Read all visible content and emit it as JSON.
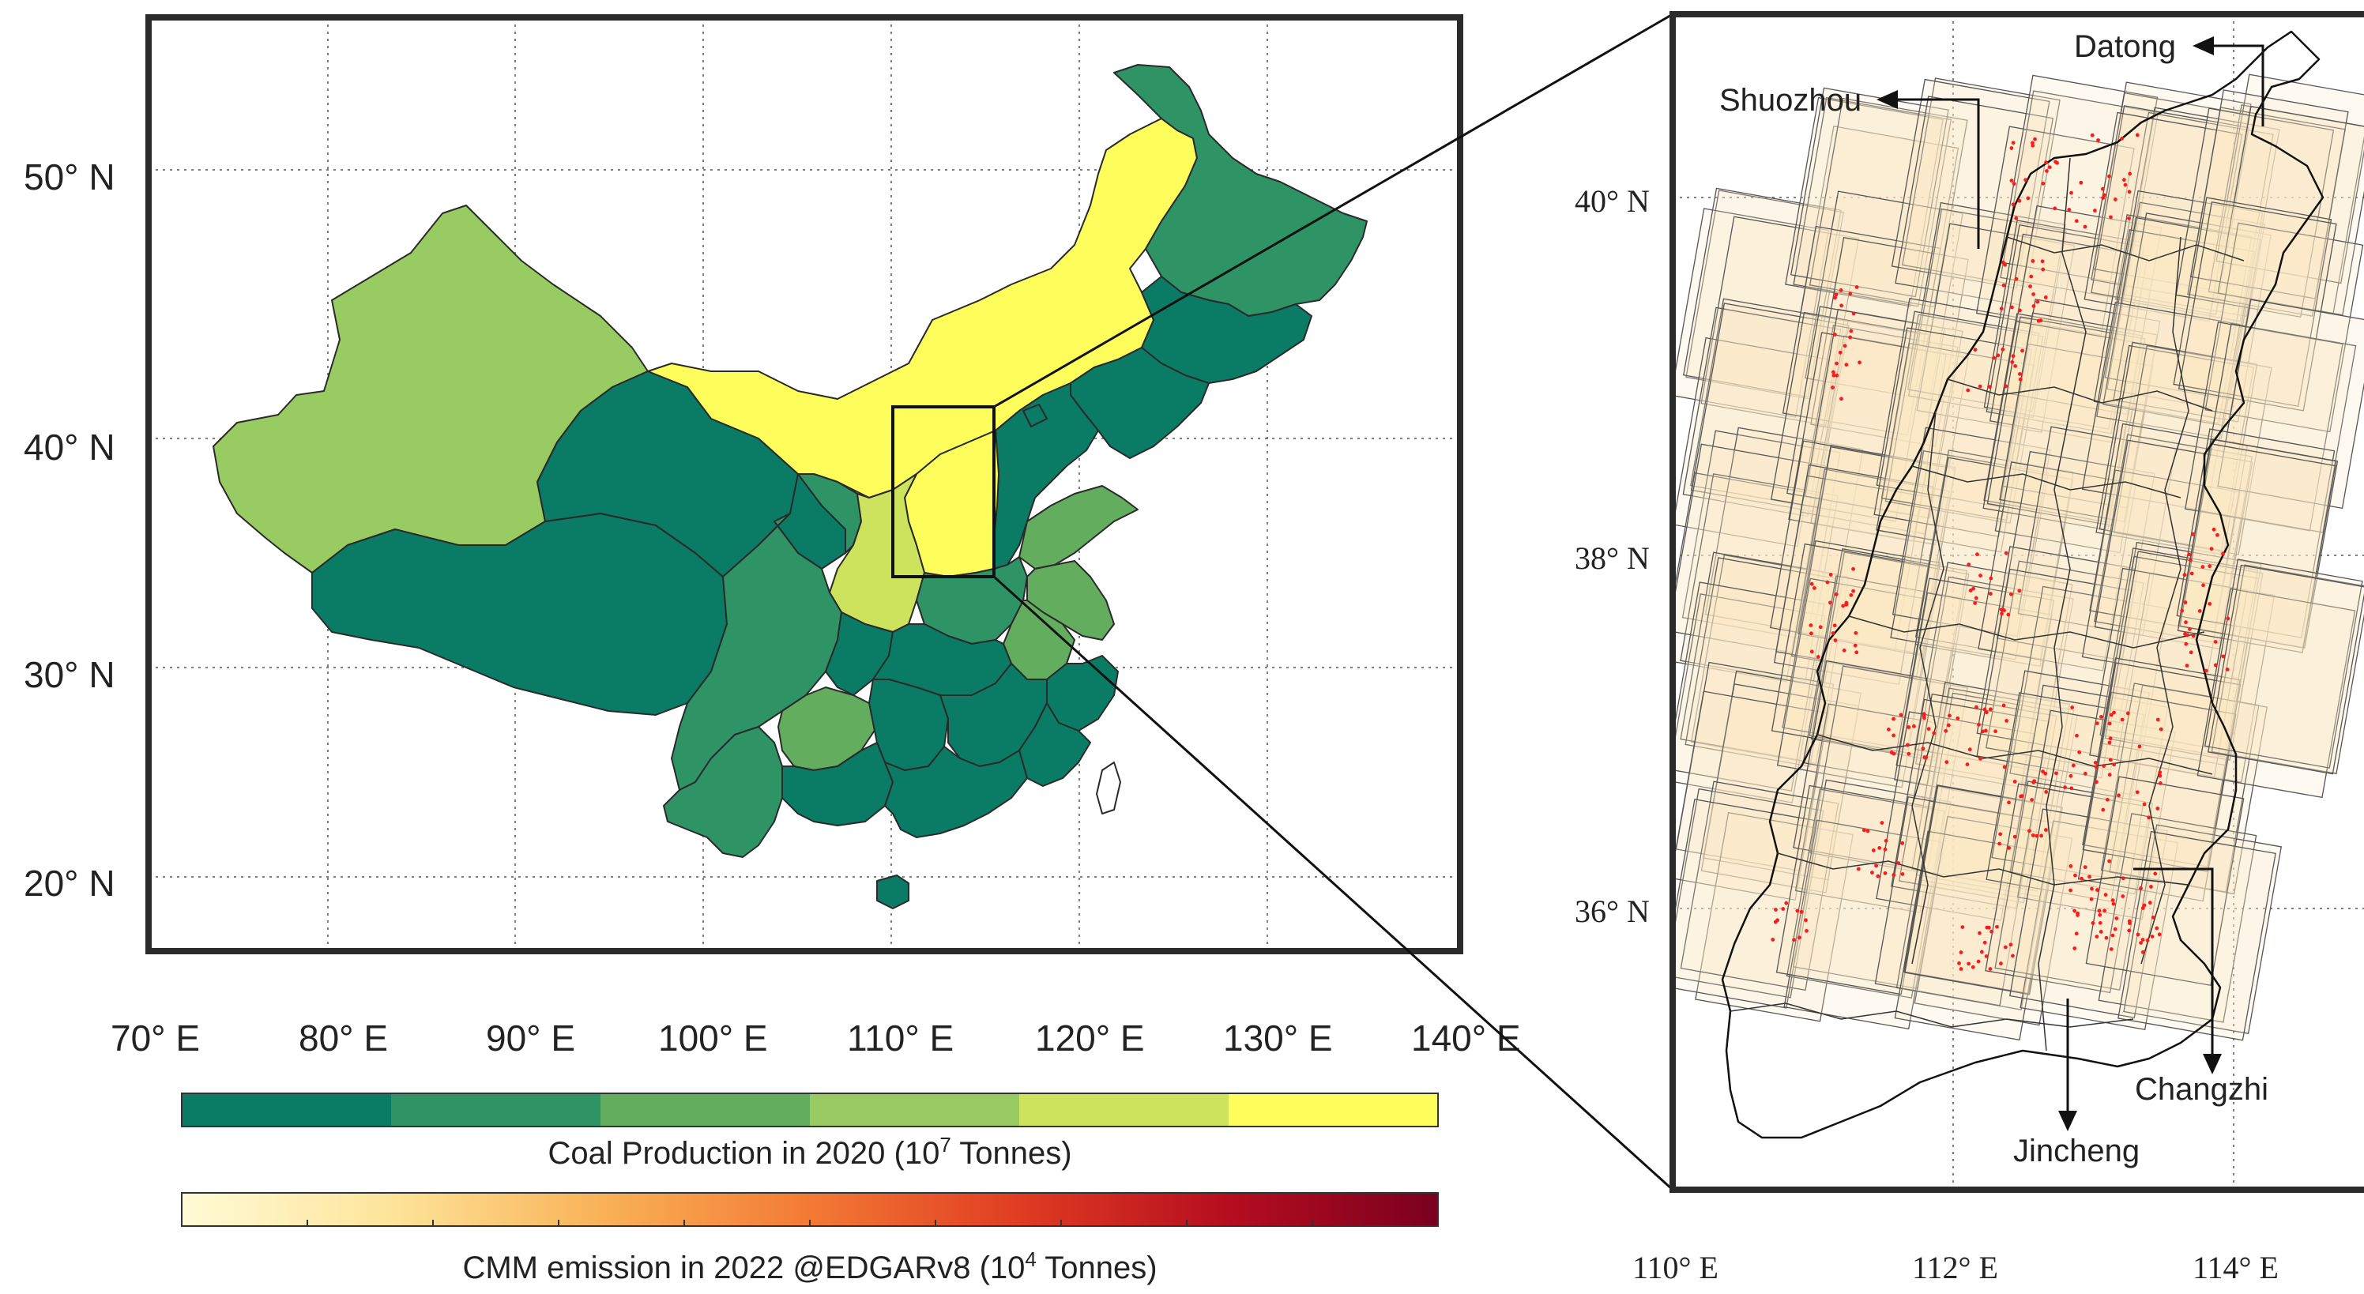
{
  "main_map": {
    "lat_labels": [
      "50° N",
      "40° N",
      "30° N",
      "20° N"
    ],
    "lon_labels": [
      "70° E",
      "80° E",
      "90° E",
      "100° E",
      "110° E",
      "120° E",
      "130° E",
      "140° E"
    ]
  },
  "inset_map": {
    "lat_labels": [
      "40° N",
      "38° N",
      "36° N"
    ],
    "lon_labels": [
      "110° E",
      "112° E",
      "114° E"
    ],
    "cities": [
      "Datong",
      "Shuozhou",
      "Changzhi",
      "Jincheng"
    ]
  },
  "colorbars": {
    "coal": {
      "label": "Coal Production in 2020 (10",
      "exponent": "7",
      "unit": " Tonnes)",
      "colors": [
        "#0a7b64",
        "#2e9466",
        "#63ad5f",
        "#98cc62",
        "#cde35e",
        "#fdfe5c"
      ]
    },
    "cmm": {
      "label": "CMM emission in 2022 @EDGARv8 (10",
      "exponent": "4",
      "unit": " Tonnes)",
      "colors": [
        "#fffbd6",
        "#fde49a",
        "#f9b257",
        "#f37a34",
        "#e03c22",
        "#b60d1f",
        "#7a001f"
      ]
    }
  },
  "legend_colors": {
    "province_border": "#2a2a2a",
    "frame": "#2b2b2b",
    "cmm_point": "#ff1a1a"
  }
}
